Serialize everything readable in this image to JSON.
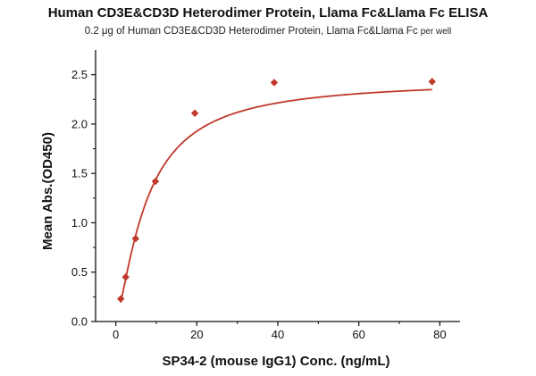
{
  "chart_data": {
    "type": "scatter",
    "title": "Human CD3E&CD3D Heterodimer Protein, Llama Fc&Llama Fc ELISA",
    "subtitle_main": "0.2 μg of Human CD3E&CD3D Heterodimer Protein, Llama Fc&Llama Fc",
    "subtitle_tail": "per well",
    "xlabel": "SP34-2 (mouse IgG1) Conc. (ng/mL)",
    "ylabel": "Mean Abs.(OD450)",
    "xlim": [
      -5,
      85
    ],
    "ylim": [
      0.0,
      2.75
    ],
    "x_ticks": [
      0,
      20,
      40,
      60,
      80
    ],
    "y_ticks": [
      "0.0",
      "0.5",
      "1.0",
      "1.5",
      "2.0",
      "2.5"
    ],
    "grid": false,
    "series": [
      {
        "color": "#c0392b",
        "marker": "diamond",
        "points": [
          {
            "x": 1.22,
            "y": 0.23
          },
          {
            "x": 2.44,
            "y": 0.45
          },
          {
            "x": 4.88,
            "y": 0.84
          },
          {
            "x": 9.77,
            "y": 1.42
          },
          {
            "x": 19.5,
            "y": 2.11
          },
          {
            "x": 39.1,
            "y": 2.42
          },
          {
            "x": 78.1,
            "y": 2.43
          }
        ],
        "fit_curve": true
      }
    ]
  }
}
